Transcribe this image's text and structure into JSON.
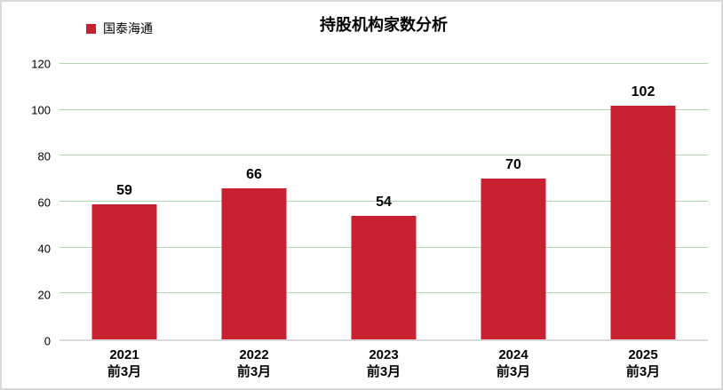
{
  "page": {
    "background": "#ffffff",
    "border_color": "#d9d9d9"
  },
  "chart_data": {
    "type": "bar",
    "title": "持股机构家数分析",
    "series_name": "国泰海通",
    "categories": [
      "2021\n前3月",
      "2022\n前3月",
      "2023\n前3月",
      "2024\n前3月",
      "2025\n前3月"
    ],
    "values": [
      59,
      66,
      54,
      70,
      102
    ],
    "data_labels": [
      "59",
      "66",
      "54",
      "70",
      "102"
    ],
    "xlabel": "",
    "ylabel": "",
    "ylim": [
      0,
      120
    ],
    "yticks": [
      0,
      20,
      40,
      60,
      80,
      100,
      120
    ],
    "grid": true,
    "legend_position": "top-left",
    "bar_color": "#c82132",
    "gridline_color": "#aed8ae",
    "axis_line_color": "#d9d9d9",
    "label_color": "#000000"
  }
}
